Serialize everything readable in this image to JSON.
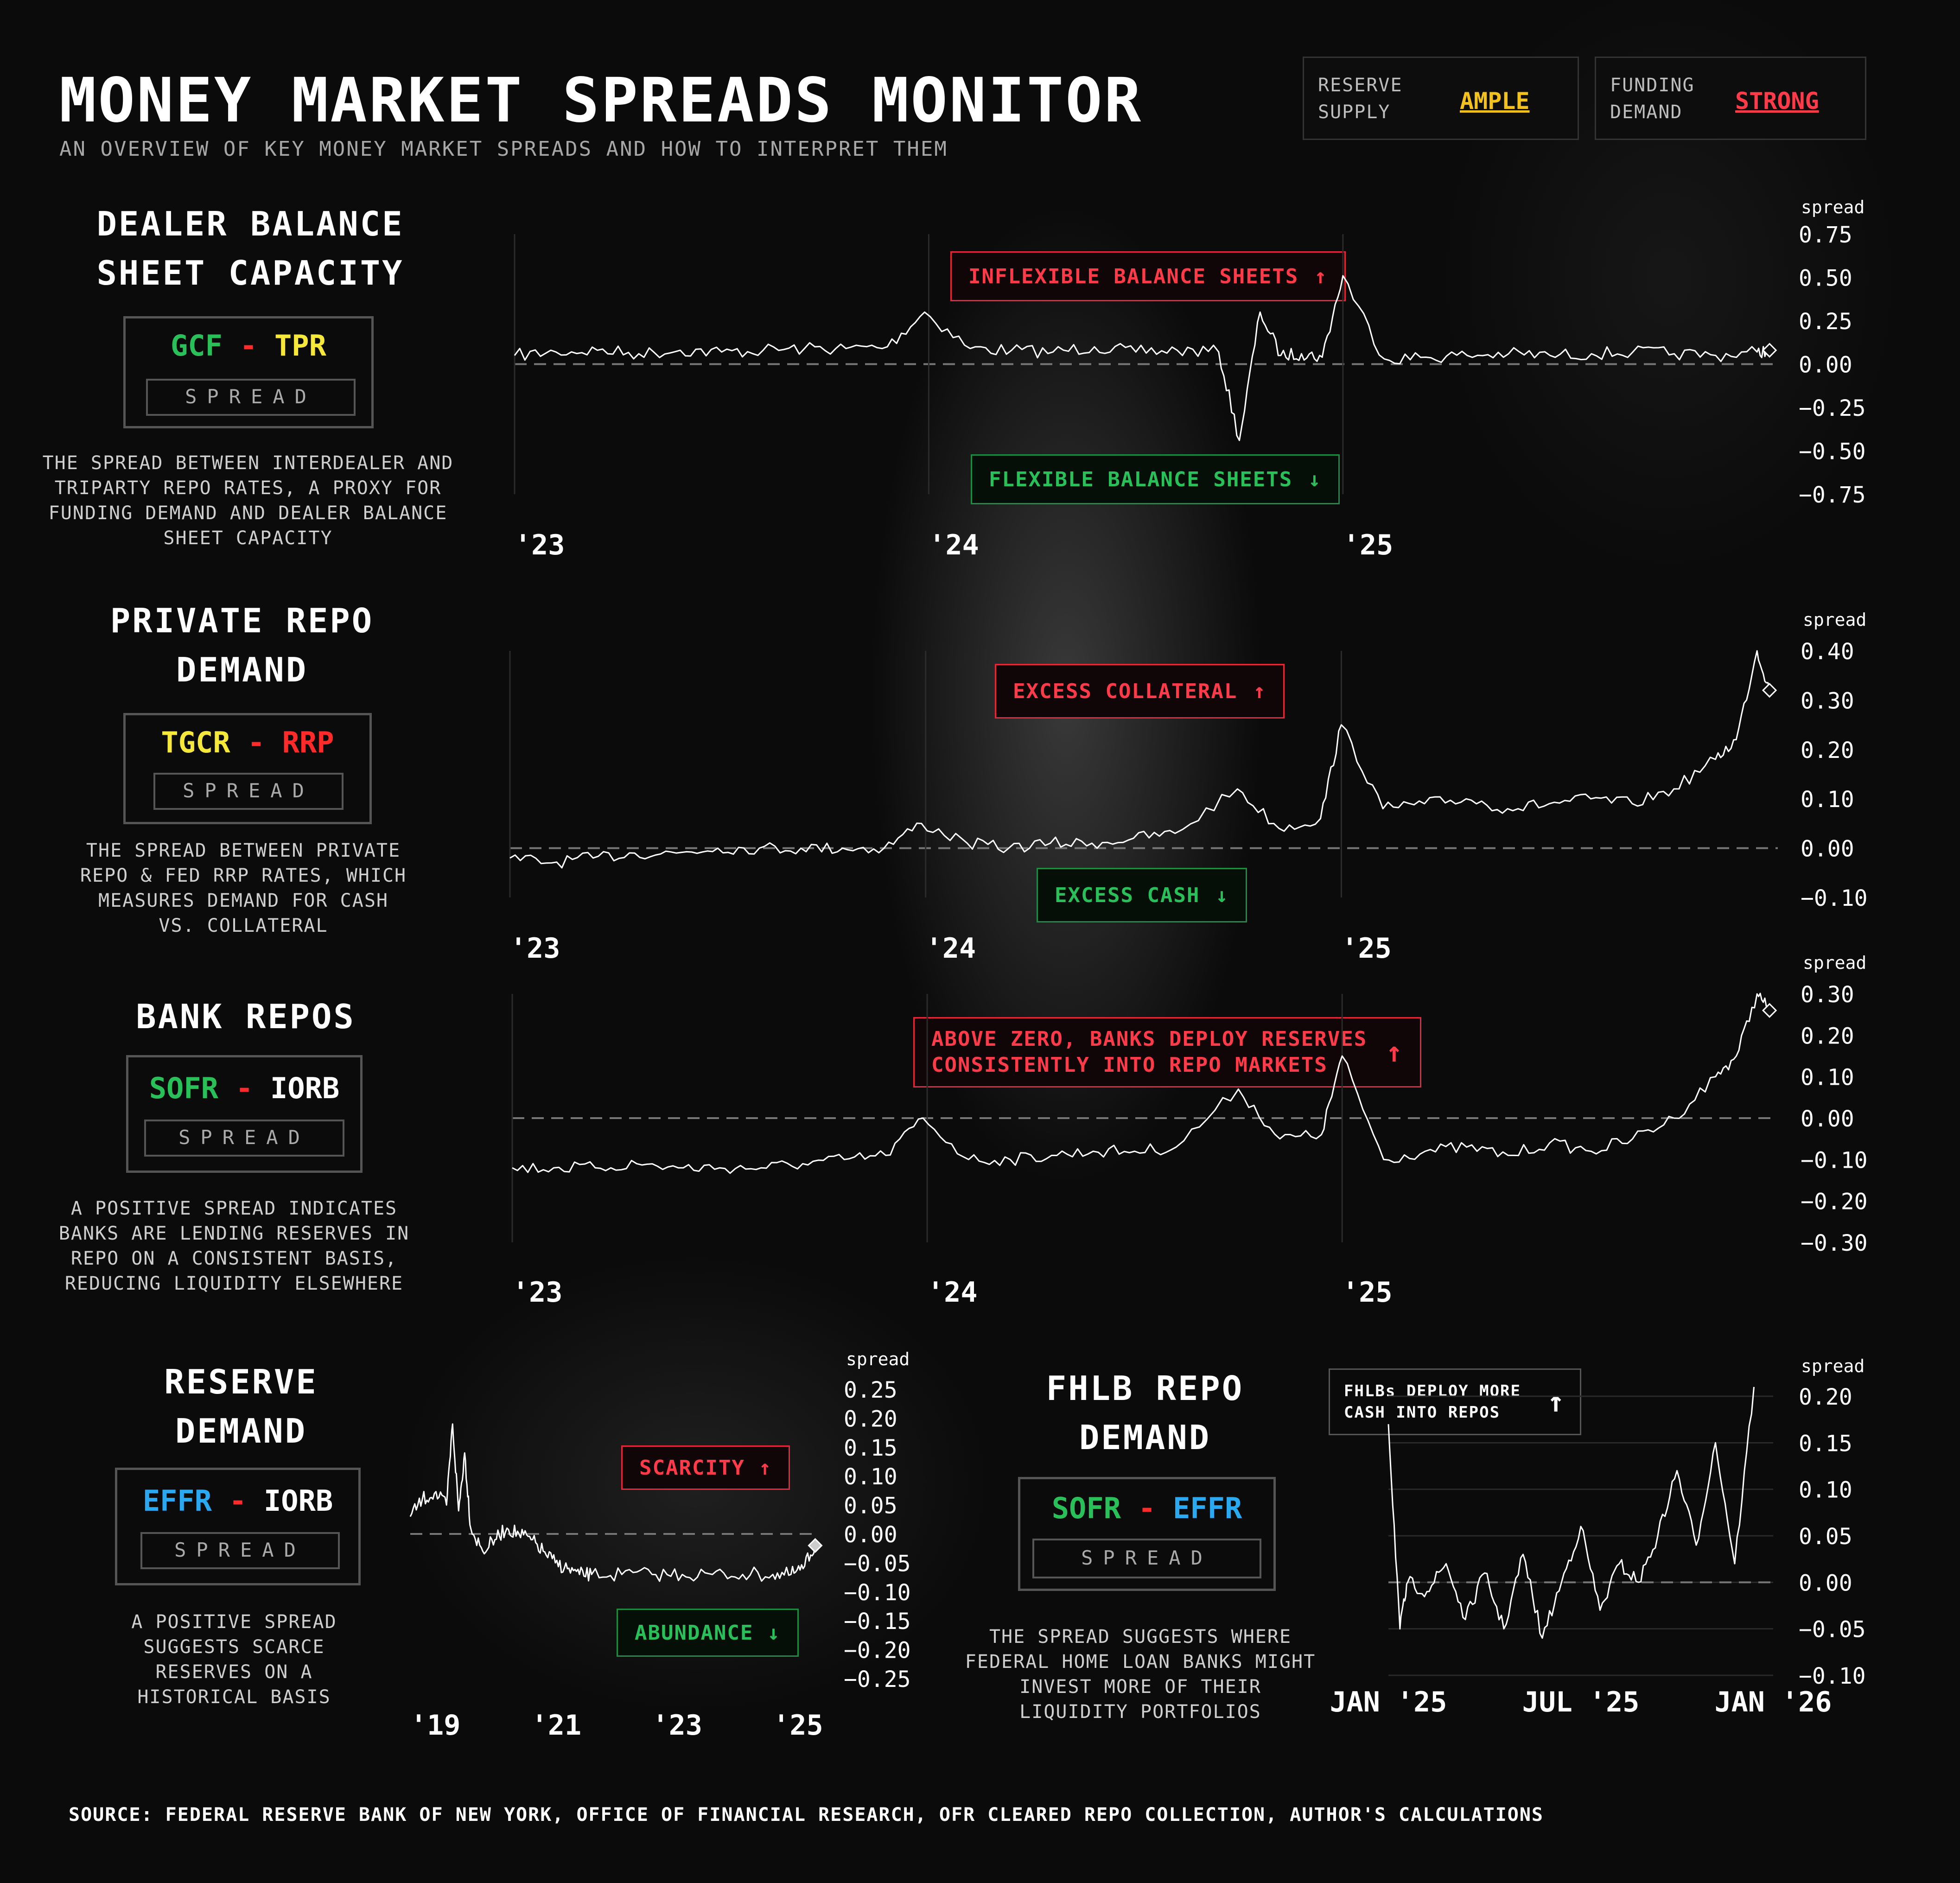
{
  "header": {
    "title": "MONEY MARKET SPREADS MONITOR",
    "subtitle": "AN OVERVIEW OF KEY MONEY MARKET SPREADS AND HOW TO INTERPRET THEM"
  },
  "status": [
    {
      "label1": "RESERVE",
      "label2": "SUPPLY",
      "value": "AMPLE",
      "color": "#f2c11c"
    },
    {
      "label1": "FUNDING",
      "label2": "DEMAND",
      "value": "STRONG",
      "color": "#ff3b4a"
    }
  ],
  "spread_word": "SPREAD",
  "sections": [
    {
      "title1": "DEALER BALANCE",
      "title2": "SHEET CAPACITY",
      "f1": "GCF",
      "f1c": "#29c05a",
      "f2": "TPR",
      "f2c": "#f5e83a",
      "desc": [
        "THE SPREAD BETWEEN INTERDEALER AND",
        "TRIPARTY REPO RATES, A PROXY FOR",
        "FUNDING DEMAND AND DEALER BALANCE",
        "SHEET CAPACITY"
      ],
      "callout_up": "INFLEXIBLE BALANCE SHEETS",
      "callout_down": "FLEXIBLE BALANCE SHEETS"
    },
    {
      "title1": "PRIVATE REPO",
      "title2": "DEMAND",
      "f1": "TGCR",
      "f1c": "#f5e83a",
      "f2": "RRP",
      "f2c": "#ff2a2a",
      "desc": [
        "THE SPREAD BETWEEN PRIVATE",
        "REPO & FED RRP RATES, WHICH",
        "MEASURES DEMAND FOR CASH",
        "VS. COLLATERAL"
      ],
      "callout_up": "EXCESS COLLATERAL",
      "callout_down": "EXCESS CASH"
    },
    {
      "title1": "BANK REPOS",
      "title2": "",
      "f1": "SOFR",
      "f1c": "#29c05a",
      "f2": "IORB",
      "f2c": "#ffffff",
      "desc": [
        "A POSITIVE SPREAD INDICATES",
        "BANKS ARE LENDING RESERVES IN",
        "REPO ON A CONSISTENT BASIS,",
        "REDUCING LIQUIDITY ELSEWHERE"
      ],
      "callout_up1": "ABOVE ZERO, BANKS DEPLOY RESERVES",
      "callout_up2": "CONSISTENTLY INTO REPO MARKETS"
    },
    {
      "title1": "RESERVE",
      "title2": "DEMAND",
      "f1": "EFFR",
      "f1c": "#2aa8f0",
      "f2": "IORB",
      "f2c": "#ffffff",
      "desc": [
        "A POSITIVE SPREAD",
        "SUGGESTS SCARCE",
        "RESERVES ON A",
        "HISTORICAL BASIS"
      ],
      "callout_up": "SCARCITY",
      "callout_down": "ABUNDANCE"
    },
    {
      "title1": "FHLB REPO",
      "title2": "DEMAND",
      "f1": "SOFR",
      "f1c": "#29c05a",
      "f2": "EFFR",
      "f2c": "#2aa8f0",
      "desc": [
        "THE SPREAD SUGGESTS WHERE",
        "FEDERAL HOME LOAN BANKS MIGHT",
        "INVEST MORE OF THEIR",
        "LIQUIDITY PORTFOLIOS"
      ],
      "callout_up1": "FHLBs DEPLOY MORE",
      "callout_up2": "CASH INTO REPOS"
    }
  ],
  "source": "SOURCE: FEDERAL RESERVE BANK OF NEW YORK, OFFICE OF FINANCIAL RESEARCH, OFR CLEARED REPO COLLECTION, AUTHOR'S CALCULATIONS",
  "chart_data": [
    {
      "type": "line",
      "name": "GCF - TPR",
      "ylabel": "spread",
      "ylim": [
        -0.75,
        0.75
      ],
      "yticks": [
        "0.75",
        "0.50",
        "0.25",
        "0.00",
        "−0.25",
        "−0.50",
        "−0.75"
      ],
      "xticks": [
        {
          "label": "'23",
          "x": 2023.0
        },
        {
          "label": "'24",
          "x": 2024.0
        },
        {
          "label": "'25",
          "x": 2025.0
        }
      ],
      "x": [
        2023.0,
        2023.1,
        2023.2,
        2023.3,
        2023.4,
        2023.5,
        2023.6,
        2023.7,
        2023.8,
        2023.9,
        2023.99,
        2024.1,
        2024.2,
        2024.3,
        2024.4,
        2024.5,
        2024.6,
        2024.7,
        2024.75,
        2024.8,
        2024.85,
        2024.9,
        2024.95,
        2025.0,
        2025.1,
        2025.2,
        2025.3,
        2025.4,
        2025.5,
        2025.6,
        2025.7,
        2025.8,
        2025.9,
        2026.0,
        2026.03
      ],
      "values": [
        0.05,
        0.07,
        0.08,
        0.06,
        0.08,
        0.07,
        0.08,
        0.09,
        0.09,
        0.1,
        0.3,
        0.09,
        0.08,
        0.07,
        0.1,
        0.07,
        0.08,
        0.07,
        -0.44,
        0.3,
        0.05,
        0.06,
        0.04,
        0.51,
        0.03,
        0.04,
        0.05,
        0.06,
        0.05,
        0.06,
        0.07,
        0.06,
        0.05,
        0.07,
        0.08
      ]
    },
    {
      "type": "line",
      "name": "TGCR - RRP",
      "ylabel": "spread",
      "ylim": [
        -0.1,
        0.4
      ],
      "yticks": [
        "0.40",
        "0.30",
        "0.20",
        "0.10",
        "0.00",
        "−0.10"
      ],
      "xticks": [
        {
          "label": "'23",
          "x": 2023.0
        },
        {
          "label": "'24",
          "x": 2024.0
        },
        {
          "label": "'25",
          "x": 2025.0
        }
      ],
      "x": [
        2023.0,
        2023.1,
        2023.2,
        2023.3,
        2023.4,
        2023.5,
        2023.6,
        2023.7,
        2023.8,
        2023.9,
        2023.99,
        2024.1,
        2024.2,
        2024.3,
        2024.4,
        2024.5,
        2024.6,
        2024.75,
        2024.85,
        2024.95,
        2025.0,
        2025.1,
        2025.2,
        2025.3,
        2025.4,
        2025.5,
        2025.6,
        2025.7,
        2025.8,
        2025.9,
        2025.95,
        2026.0,
        2026.03
      ],
      "values": [
        -0.02,
        -0.03,
        -0.02,
        -0.01,
        -0.01,
        0.0,
        0.0,
        0.0,
        0.0,
        0.0,
        0.05,
        0.01,
        0.0,
        0.01,
        0.01,
        0.02,
        0.03,
        0.12,
        0.04,
        0.06,
        0.25,
        0.08,
        0.09,
        0.1,
        0.08,
        0.09,
        0.1,
        0.09,
        0.12,
        0.18,
        0.22,
        0.4,
        0.32
      ]
    },
    {
      "type": "line",
      "name": "SOFR - IORB",
      "ylabel": "spread",
      "ylim": [
        -0.3,
        0.3
      ],
      "yticks": [
        "0.30",
        "0.20",
        "0.10",
        "0.00",
        "−0.10",
        "−0.20",
        "−0.30"
      ],
      "xticks": [
        {
          "label": "'23",
          "x": 2023.0
        },
        {
          "label": "'24",
          "x": 2024.0
        },
        {
          "label": "'25",
          "x": 2025.0
        }
      ],
      "x": [
        2023.0,
        2023.1,
        2023.2,
        2023.3,
        2023.4,
        2023.5,
        2023.6,
        2023.7,
        2023.8,
        2023.9,
        2023.99,
        2024.1,
        2024.2,
        2024.3,
        2024.4,
        2024.5,
        2024.6,
        2024.75,
        2024.85,
        2024.95,
        2025.0,
        2025.1,
        2025.2,
        2025.3,
        2025.4,
        2025.5,
        2025.6,
        2025.7,
        2025.8,
        2025.9,
        2025.95,
        2026.0,
        2026.03
      ],
      "values": [
        -0.12,
        -0.12,
        -0.12,
        -0.11,
        -0.12,
        -0.12,
        -0.12,
        -0.11,
        -0.1,
        -0.09,
        0.0,
        -0.1,
        -0.1,
        -0.09,
        -0.08,
        -0.08,
        -0.07,
        0.07,
        -0.05,
        -0.04,
        0.15,
        -0.1,
        -0.08,
        -0.07,
        -0.09,
        -0.06,
        -0.08,
        -0.05,
        0.0,
        0.1,
        0.15,
        0.3,
        0.26
      ]
    },
    {
      "type": "line",
      "name": "EFFR - IORB",
      "ylabel": "spread",
      "ylim": [
        -0.25,
        0.25
      ],
      "yticks": [
        "0.25",
        "0.20",
        "0.15",
        "0.10",
        "0.05",
        "0.00",
        "−0.05",
        "−0.10",
        "−0.15",
        "−0.20",
        "−0.25"
      ],
      "xticks": [
        {
          "label": "'19",
          "x": 2019.0
        },
        {
          "label": "'21",
          "x": 2021.0
        },
        {
          "label": "'23",
          "x": 2023.0
        },
        {
          "label": "'25",
          "x": 2025.0
        }
      ],
      "x": [
        2019.0,
        2019.2,
        2019.4,
        2019.6,
        2019.7,
        2019.8,
        2019.9,
        2020.0,
        2020.2,
        2020.4,
        2020.6,
        2020.8,
        2021.0,
        2021.2,
        2021.4,
        2021.6,
        2021.8,
        2022.0,
        2022.5,
        2023.0,
        2023.5,
        2024.0,
        2024.5,
        2025.0,
        2025.3,
        2025.5,
        2025.7
      ],
      "values": [
        0.03,
        0.06,
        0.07,
        0.05,
        0.19,
        0.04,
        0.14,
        0.01,
        -0.03,
        -0.01,
        0.01,
        0.0,
        -0.01,
        -0.03,
        -0.05,
        -0.06,
        -0.07,
        -0.07,
        -0.07,
        -0.07,
        -0.07,
        -0.07,
        -0.07,
        -0.07,
        -0.07,
        -0.06,
        -0.02
      ]
    },
    {
      "type": "line",
      "name": "SOFR - EFFR",
      "ylabel": "spread",
      "ylim": [
        -0.1,
        0.2
      ],
      "yticks": [
        "0.20",
        "0.15",
        "0.10",
        "0.05",
        "0.00",
        "−0.05",
        "−0.10"
      ],
      "xticks": [
        {
          "label": "JAN '25",
          "x": 2025.0
        },
        {
          "label": "JUL '25",
          "x": 2025.5
        },
        {
          "label": "JAN '26",
          "x": 2026.0
        }
      ],
      "x": [
        2025.0,
        2025.03,
        2025.05,
        2025.1,
        2025.15,
        2025.2,
        2025.25,
        2025.3,
        2025.35,
        2025.4,
        2025.45,
        2025.5,
        2025.55,
        2025.6,
        2025.65,
        2025.7,
        2025.75,
        2025.8,
        2025.85,
        2025.9,
        2025.95
      ],
      "values": [
        0.17,
        -0.05,
        0.0,
        -0.01,
        0.02,
        -0.04,
        0.01,
        -0.05,
        0.03,
        -0.06,
        0.0,
        0.06,
        -0.03,
        0.02,
        0.0,
        0.05,
        0.12,
        0.04,
        0.15,
        0.02,
        0.21
      ]
    }
  ]
}
